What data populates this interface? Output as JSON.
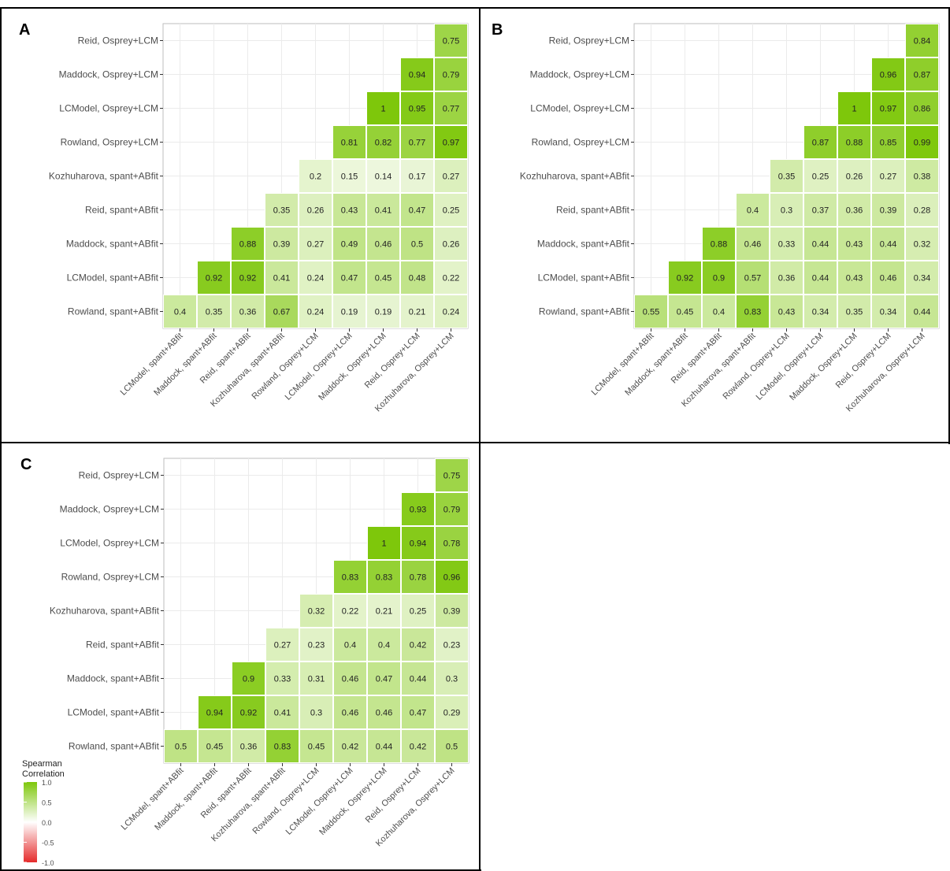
{
  "colors": {
    "high": "#7ec70b",
    "mid": "#ffffff",
    "low": "#e52b2b",
    "border": "#000000",
    "grid": "#ebebeb",
    "text": "#4d4d4d"
  },
  "legend": {
    "title_line1": "Spearman",
    "title_line2": "Correlation",
    "ticks": [
      "1.0",
      "0.5",
      "0.0",
      "-0.5",
      "-1.0"
    ],
    "tick_values": [
      1.0,
      0.5,
      0.0,
      -0.5,
      -1.0
    ]
  },
  "chart_data": [
    {
      "type": "heatmap",
      "panel": "A",
      "y_labels": [
        "Reid, Osprey+LCM",
        "Maddock, Osprey+LCM",
        "LCModel, Osprey+LCM",
        "Rowland, Osprey+LCM",
        "Kozhuharova, spant+ABfit",
        "Reid, spant+ABfit",
        "Maddock, spant+ABfit",
        "LCModel, spant+ABfit",
        "Rowland, spant+ABfit"
      ],
      "x_labels": [
        "LCModel, spant+ABfit",
        "Maddock, spant+ABfit",
        "Reid, spant+ABfit",
        "Kozhuharova, spant+ABfit",
        "Rowland, Osprey+LCM",
        "LCModel, Osprey+LCM",
        "Maddock, Osprey+LCM",
        "Reid, Osprey+LCM",
        "Kozhuharova, Osprey+LCM"
      ],
      "values": [
        [
          null,
          null,
          null,
          null,
          null,
          null,
          null,
          null,
          0.75
        ],
        [
          null,
          null,
          null,
          null,
          null,
          null,
          null,
          0.94,
          0.79
        ],
        [
          null,
          null,
          null,
          null,
          null,
          null,
          1,
          0.95,
          0.77
        ],
        [
          null,
          null,
          null,
          null,
          null,
          0.81,
          0.82,
          0.77,
          0.97
        ],
        [
          null,
          null,
          null,
          null,
          0.2,
          0.15,
          0.14,
          0.17,
          0.27
        ],
        [
          null,
          null,
          null,
          0.35,
          0.26,
          0.43,
          0.41,
          0.47,
          0.25
        ],
        [
          null,
          null,
          0.88,
          0.39,
          0.27,
          0.49,
          0.46,
          0.5,
          0.26
        ],
        [
          null,
          0.92,
          0.92,
          0.41,
          0.24,
          0.47,
          0.45,
          0.48,
          0.22
        ],
        [
          0.4,
          0.35,
          0.36,
          0.67,
          0.24,
          0.19,
          0.19,
          0.21,
          0.24
        ]
      ]
    },
    {
      "type": "heatmap",
      "panel": "B",
      "y_labels": [
        "Reid, Osprey+LCM",
        "Maddock, Osprey+LCM",
        "LCModel, Osprey+LCM",
        "Rowland, Osprey+LCM",
        "Kozhuharova, spant+ABfit",
        "Reid, spant+ABfit",
        "Maddock, spant+ABfit",
        "LCModel, spant+ABfit",
        "Rowland, spant+ABfit"
      ],
      "x_labels": [
        "LCModel, spant+ABfit",
        "Maddock, spant+ABfit",
        "Reid, spant+ABfit",
        "Kozhuharova, spant+ABfit",
        "Rowland, Osprey+LCM",
        "LCModel, Osprey+LCM",
        "Maddock, Osprey+LCM",
        "Reid, Osprey+LCM",
        "Kozhuharova, Osprey+LCM"
      ],
      "values": [
        [
          null,
          null,
          null,
          null,
          null,
          null,
          null,
          null,
          0.84
        ],
        [
          null,
          null,
          null,
          null,
          null,
          null,
          null,
          0.96,
          0.87
        ],
        [
          null,
          null,
          null,
          null,
          null,
          null,
          1,
          0.97,
          0.86
        ],
        [
          null,
          null,
          null,
          null,
          null,
          0.87,
          0.88,
          0.85,
          0.99
        ],
        [
          null,
          null,
          null,
          null,
          0.35,
          0.25,
          0.26,
          0.27,
          0.38
        ],
        [
          null,
          null,
          null,
          0.4,
          0.3,
          0.37,
          0.36,
          0.39,
          0.28
        ],
        [
          null,
          null,
          0.88,
          0.46,
          0.33,
          0.44,
          0.43,
          0.44,
          0.32
        ],
        [
          null,
          0.92,
          0.9,
          0.57,
          0.36,
          0.44,
          0.43,
          0.46,
          0.34
        ],
        [
          0.55,
          0.45,
          0.4,
          0.83,
          0.43,
          0.34,
          0.35,
          0.34,
          0.44
        ]
      ]
    },
    {
      "type": "heatmap",
      "panel": "C",
      "y_labels": [
        "Reid, Osprey+LCM",
        "Maddock, Osprey+LCM",
        "LCModel, Osprey+LCM",
        "Rowland, Osprey+LCM",
        "Kozhuharova, spant+ABfit",
        "Reid, spant+ABfit",
        "Maddock, spant+ABfit",
        "LCModel, spant+ABfit",
        "Rowland, spant+ABfit"
      ],
      "x_labels": [
        "LCModel, spant+ABfit",
        "Maddock, spant+ABfit",
        "Reid, spant+ABfit",
        "Kozhuharova, spant+ABfit",
        "Rowland, Osprey+LCM",
        "LCModel, Osprey+LCM",
        "Maddock, Osprey+LCM",
        "Reid, Osprey+LCM",
        "Kozhuharova, Osprey+LCM"
      ],
      "values": [
        [
          null,
          null,
          null,
          null,
          null,
          null,
          null,
          null,
          0.75
        ],
        [
          null,
          null,
          null,
          null,
          null,
          null,
          null,
          0.93,
          0.79
        ],
        [
          null,
          null,
          null,
          null,
          null,
          null,
          1,
          0.94,
          0.78
        ],
        [
          null,
          null,
          null,
          null,
          null,
          0.83,
          0.83,
          0.78,
          0.96
        ],
        [
          null,
          null,
          null,
          null,
          0.32,
          0.22,
          0.21,
          0.25,
          0.39
        ],
        [
          null,
          null,
          null,
          0.27,
          0.23,
          0.4,
          0.4,
          0.42,
          0.23
        ],
        [
          null,
          null,
          0.9,
          0.33,
          0.31,
          0.46,
          0.47,
          0.44,
          0.3
        ],
        [
          null,
          0.94,
          0.92,
          0.41,
          0.3,
          0.46,
          0.46,
          0.47,
          0.29
        ],
        [
          0.5,
          0.45,
          0.36,
          0.83,
          0.45,
          0.42,
          0.44,
          0.42,
          0.5
        ]
      ]
    }
  ]
}
